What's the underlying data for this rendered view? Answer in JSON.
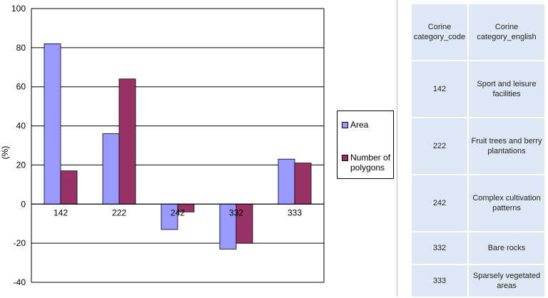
{
  "chart_data": {
    "type": "bar",
    "categories": [
      "142",
      "222",
      "242",
      "332",
      "333"
    ],
    "series": [
      {
        "name": "Area",
        "color": "#9999ff",
        "values": [
          82,
          36,
          -13,
          -23,
          23
        ]
      },
      {
        "name": "Number of polygons",
        "color": "#993366",
        "values": [
          17,
          64,
          -4,
          -20,
          21
        ]
      }
    ],
    "ylabel": "(%)",
    "ylim": [
      -40,
      100
    ],
    "yticks": [
      -40,
      -20,
      0,
      20,
      40,
      60,
      80,
      100
    ],
    "grid": true,
    "legend_position": "right"
  },
  "table": {
    "headers": [
      "Corine category_code",
      "Corine category_english"
    ],
    "rows": [
      [
        "142",
        "Sport and leisure facilities"
      ],
      [
        "222",
        "Fruit trees and berry plantations"
      ],
      [
        "242",
        "Complex cultivation patterns"
      ],
      [
        "332",
        "Bare rocks"
      ],
      [
        "333",
        "Sparsely vegetated areas"
      ]
    ]
  }
}
